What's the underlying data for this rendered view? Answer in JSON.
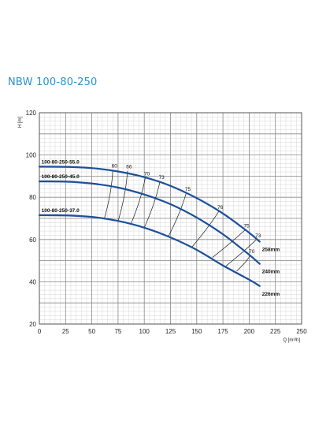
{
  "title": "NBW 100-80-250",
  "chart_data": {
    "type": "line",
    "title": "NBW 100-80-250",
    "xlabel": "Q [m³/h]",
    "ylabel": "H [m]",
    "xlim": [
      0,
      250
    ],
    "ylim": [
      20,
      120
    ],
    "xticks": [
      0,
      25,
      50,
      75,
      100,
      125,
      150,
      175,
      200,
      225,
      250
    ],
    "yticks": [
      20,
      40,
      60,
      80,
      100,
      120
    ],
    "grid": true,
    "series": [
      {
        "name": "100-80-250-55.0",
        "x": [
          0,
          25,
          50,
          75,
          100,
          125,
          150,
          175,
          200,
          210
        ],
        "y": [
          94.5,
          94.4,
          93.8,
          92.2,
          89.5,
          85.4,
          79.6,
          72.3,
          63.2,
          59.0
        ]
      },
      {
        "name": "100-80-250-45.0",
        "x": [
          0,
          25,
          50,
          75,
          100,
          125,
          150,
          175,
          200,
          210
        ],
        "y": [
          87.5,
          87.4,
          86.5,
          84.6,
          81.3,
          76.7,
          70.4,
          62.5,
          52.8,
          48.5
        ]
      },
      {
        "name": "100-80-250-37.0",
        "x": [
          0,
          25,
          50,
          75,
          100,
          125,
          150,
          175,
          200,
          210
        ],
        "y": [
          71.5,
          71.4,
          70.7,
          68.8,
          65.6,
          61.0,
          55.1,
          47.7,
          41.0,
          38.0
        ]
      }
    ],
    "impeller_labels": [
      "258mm",
      "240mm",
      "226mm"
    ],
    "efficiency_lines": [
      {
        "label": "60",
        "top": [
          70,
          93.0
        ],
        "bottom": [
          62,
          70.0
        ]
      },
      {
        "label": "66",
        "top": [
          84,
          92.5
        ],
        "bottom": [
          75,
          68.5
        ]
      },
      {
        "label": "70",
        "top": [
          101,
          89.3
        ],
        "bottom": [
          87,
          67.0
        ]
      },
      {
        "label": "73",
        "top": [
          115,
          87.5
        ],
        "bottom": [
          100,
          65.6
        ]
      },
      {
        "label": "75",
        "top": [
          140,
          82.0
        ],
        "bottom": [
          123,
          61.5
        ]
      },
      {
        "label": "76",
        "top": [
          171,
          73.3
        ],
        "bottom": [
          145,
          56.2
        ]
      },
      {
        "label": "75",
        "top": [
          196,
          64.5
        ],
        "bottom": [
          165,
          51.5
        ]
      },
      {
        "label": "73",
        "top": [
          207,
          60.0
        ],
        "bottom": [
          178,
          47.5
        ]
      },
      {
        "label": "70",
        "top": [
          201,
          52.5
        ],
        "bottom": [
          188,
          45.0
        ]
      }
    ]
  }
}
